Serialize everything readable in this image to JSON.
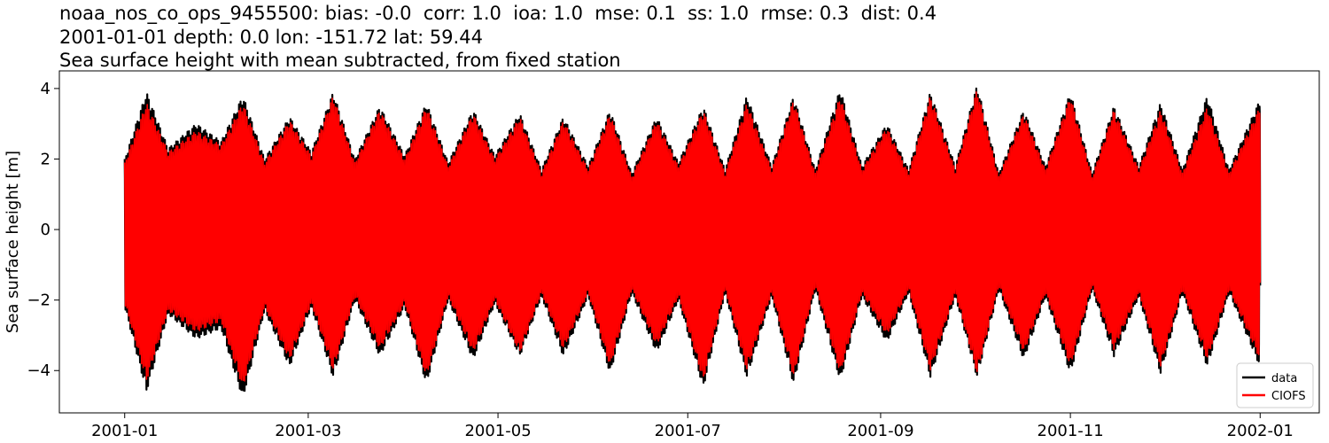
{
  "chart_data": {
    "type": "line",
    "title_lines": [
      "noaa_nos_co_ops_9455500: bias: -0.0  corr: 1.0  ioa: 1.0  mse: 0.1  ss: 1.0  rmse: 0.3  dist: 0.4",
      "2001-01-01 depth: 0.0 lon: -151.72 lat: 59.44",
      "Sea surface height with mean subtracted, from fixed station"
    ],
    "xlabel": "",
    "ylabel": "Sea surface height [m]",
    "x_start": "2001-01-01",
    "x_end": "2002-01-01",
    "xlim": [
      "2000-12-11",
      "2002-01-20"
    ],
    "ylim": [
      -5.2,
      4.5
    ],
    "x_ticks": [
      "2001-01",
      "2001-03",
      "2001-05",
      "2001-07",
      "2001-09",
      "2001-11",
      "2002-01"
    ],
    "y_ticks": [
      4,
      2,
      0,
      -2,
      -4
    ],
    "y_tick_labels": [
      "4",
      "2",
      "0",
      "−2",
      "−4"
    ],
    "grid": false,
    "legend": {
      "placement": "lower-right"
    },
    "series": [
      {
        "name": "data",
        "color": "#000000",
        "envelope": {
          "dates": [
            "2001-01-01",
            "2001-01-08",
            "2001-01-15",
            "2001-01-24",
            "2001-02-01",
            "2001-02-08",
            "2001-02-15",
            "2001-02-23",
            "2001-03-02",
            "2001-03-09",
            "2001-03-16",
            "2001-03-24",
            "2001-04-01",
            "2001-04-08",
            "2001-04-15",
            "2001-04-23",
            "2001-04-30",
            "2001-05-08",
            "2001-05-15",
            "2001-05-22",
            "2001-05-30",
            "2001-06-06",
            "2001-06-13",
            "2001-06-21",
            "2001-06-28",
            "2001-07-06",
            "2001-07-13",
            "2001-07-20",
            "2001-07-28",
            "2001-08-04",
            "2001-08-11",
            "2001-08-19",
            "2001-08-26",
            "2001-09-03",
            "2001-09-10",
            "2001-09-17",
            "2001-09-25",
            "2001-10-02",
            "2001-10-09",
            "2001-10-17",
            "2001-10-24",
            "2001-11-01",
            "2001-11-08",
            "2001-11-15",
            "2001-11-23",
            "2001-11-30",
            "2001-12-07",
            "2001-12-15",
            "2001-12-22",
            "2002-01-01"
          ],
          "high": [
            2.0,
            3.9,
            2.3,
            3.0,
            2.5,
            3.8,
            2.0,
            3.2,
            2.2,
            3.9,
            2.0,
            3.5,
            2.1,
            3.6,
            1.9,
            3.4,
            2.1,
            3.3,
            1.7,
            3.2,
            1.8,
            3.4,
            1.6,
            3.2,
            1.9,
            3.5,
            1.7,
            3.8,
            1.8,
            3.8,
            1.7,
            4.0,
            1.8,
            3.0,
            1.7,
            3.9,
            1.8,
            4.1,
            1.6,
            3.4,
            1.8,
            3.9,
            1.6,
            3.5,
            1.8,
            3.6,
            1.7,
            3.8,
            1.7,
            3.7
          ],
          "low": [
            -2.2,
            -4.6,
            -2.4,
            -3.1,
            -2.8,
            -4.8,
            -2.3,
            -3.9,
            -2.2,
            -4.2,
            -2.0,
            -3.6,
            -2.2,
            -4.4,
            -2.0,
            -3.7,
            -2.1,
            -3.6,
            -1.9,
            -3.6,
            -1.9,
            -4.1,
            -1.8,
            -3.5,
            -2.0,
            -4.5,
            -1.8,
            -4.2,
            -1.9,
            -4.4,
            -1.7,
            -4.3,
            -1.9,
            -3.2,
            -1.8,
            -4.2,
            -1.9,
            -4.2,
            -1.7,
            -3.7,
            -1.9,
            -4.1,
            -1.7,
            -3.6,
            -1.9,
            -4.1,
            -1.8,
            -3.9,
            -1.8,
            -3.9
          ]
        }
      },
      {
        "name": "CIOFS",
        "color": "#ff0000",
        "envelope": {
          "dates": [
            "2001-01-01",
            "2001-01-08",
            "2001-01-15",
            "2001-01-24",
            "2001-02-01",
            "2001-02-08",
            "2001-02-15",
            "2001-02-23",
            "2001-03-02",
            "2001-03-09",
            "2001-03-16",
            "2001-03-24",
            "2001-04-01",
            "2001-04-08",
            "2001-04-15",
            "2001-04-23",
            "2001-04-30",
            "2001-05-08",
            "2001-05-15",
            "2001-05-22",
            "2001-05-30",
            "2001-06-06",
            "2001-06-13",
            "2001-06-21",
            "2001-06-28",
            "2001-07-06",
            "2001-07-13",
            "2001-07-20",
            "2001-07-28",
            "2001-08-04",
            "2001-08-11",
            "2001-08-19",
            "2001-08-26",
            "2001-09-03",
            "2001-09-10",
            "2001-09-17",
            "2001-09-25",
            "2001-10-02",
            "2001-10-09",
            "2001-10-17",
            "2001-10-24",
            "2001-11-01",
            "2001-11-08",
            "2001-11-15",
            "2001-11-23",
            "2001-11-30",
            "2001-12-07",
            "2001-12-15",
            "2001-12-22",
            "2002-01-01"
          ],
          "high": [
            1.9,
            3.6,
            2.2,
            2.8,
            2.4,
            3.6,
            1.9,
            3.1,
            2.1,
            3.8,
            1.9,
            3.4,
            2.0,
            3.5,
            1.8,
            3.3,
            2.0,
            3.2,
            1.6,
            3.1,
            1.7,
            3.3,
            1.5,
            3.1,
            1.8,
            3.4,
            1.6,
            3.6,
            1.7,
            3.7,
            1.6,
            3.8,
            1.7,
            2.9,
            1.6,
            3.8,
            1.7,
            4.0,
            1.5,
            3.3,
            1.7,
            3.8,
            1.5,
            3.4,
            1.7,
            3.4,
            1.6,
            3.5,
            1.6,
            3.5
          ],
          "low": [
            -2.1,
            -4.3,
            -2.3,
            -2.9,
            -2.6,
            -4.5,
            -2.2,
            -3.7,
            -2.1,
            -4.0,
            -1.9,
            -3.4,
            -2.1,
            -4.2,
            -1.9,
            -3.5,
            -2.0,
            -3.5,
            -1.8,
            -3.4,
            -1.8,
            -3.9,
            -1.7,
            -3.3,
            -1.9,
            -4.3,
            -1.7,
            -4.0,
            -1.8,
            -4.2,
            -1.6,
            -4.1,
            -1.8,
            -3.0,
            -1.7,
            -4.0,
            -1.8,
            -4.1,
            -1.6,
            -3.5,
            -1.8,
            -3.9,
            -1.6,
            -3.4,
            -1.8,
            -3.9,
            -1.7,
            -3.7,
            -1.7,
            -3.7
          ]
        }
      }
    ]
  }
}
